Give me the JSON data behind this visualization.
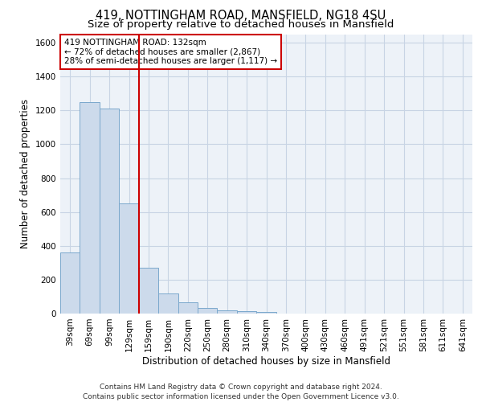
{
  "title1": "419, NOTTINGHAM ROAD, MANSFIELD, NG18 4SU",
  "title2": "Size of property relative to detached houses in Mansfield",
  "xlabel": "Distribution of detached houses by size in Mansfield",
  "ylabel": "Number of detached properties",
  "footer": "Contains HM Land Registry data © Crown copyright and database right 2024.\nContains public sector information licensed under the Open Government Licence v3.0.",
  "categories": [
    "39sqm",
    "69sqm",
    "99sqm",
    "129sqm",
    "159sqm",
    "190sqm",
    "220sqm",
    "250sqm",
    "280sqm",
    "310sqm",
    "340sqm",
    "370sqm",
    "400sqm",
    "430sqm",
    "460sqm",
    "491sqm",
    "521sqm",
    "551sqm",
    "581sqm",
    "611sqm",
    "641sqm"
  ],
  "values": [
    360,
    1250,
    1210,
    650,
    270,
    120,
    65,
    35,
    20,
    15,
    10,
    0,
    0,
    0,
    0,
    0,
    0,
    0,
    0,
    0,
    0
  ],
  "bar_color": "#ccdaeb",
  "bar_edge_color": "#7aa8cc",
  "vline_x": 3.5,
  "vline_color": "#cc0000",
  "annotation_text": "419 NOTTINGHAM ROAD: 132sqm\n← 72% of detached houses are smaller (2,867)\n28% of semi-detached houses are larger (1,117) →",
  "annotation_box_color": "#ffffff",
  "annotation_box_edge": "#cc0000",
  "ylim": [
    0,
    1650
  ],
  "yticks": [
    0,
    200,
    400,
    600,
    800,
    1000,
    1200,
    1400,
    1600
  ],
  "grid_color": "#c8d4e4",
  "bg_color": "#edf2f8",
  "title1_fontsize": 10.5,
  "title2_fontsize": 9.5,
  "axis_label_fontsize": 8.5,
  "tick_fontsize": 7.5,
  "annotation_fontsize": 7.5,
  "footer_fontsize": 6.5
}
